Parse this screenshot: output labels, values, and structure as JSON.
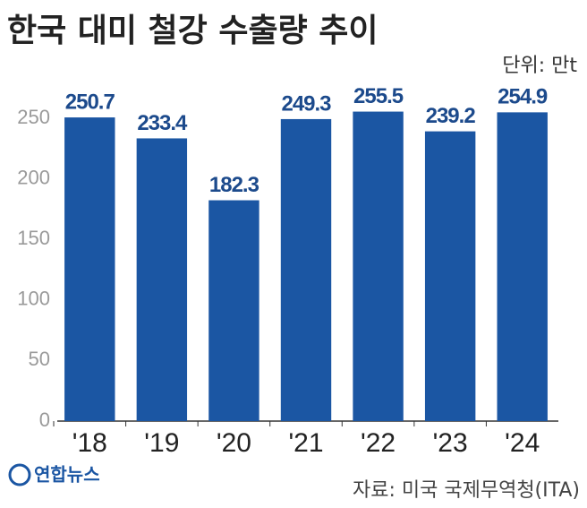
{
  "chart_data": {
    "type": "bar",
    "title": "한국 대미 철강 수출량 추이",
    "unit": "단위: 만t",
    "categories": [
      "'18",
      "'19",
      "'20",
      "'21",
      "'22",
      "'23",
      "'24"
    ],
    "values": [
      250.7,
      233.4,
      182.3,
      249.3,
      255.5,
      239.2,
      254.9
    ],
    "color": "#1b56a3",
    "ylim": [
      0,
      250
    ],
    "yticks": [
      0,
      50,
      100,
      150,
      200,
      250
    ],
    "grid": false,
    "source": "자료: 미국 국제무역청(ITA)",
    "logo": "연합뉴스"
  }
}
